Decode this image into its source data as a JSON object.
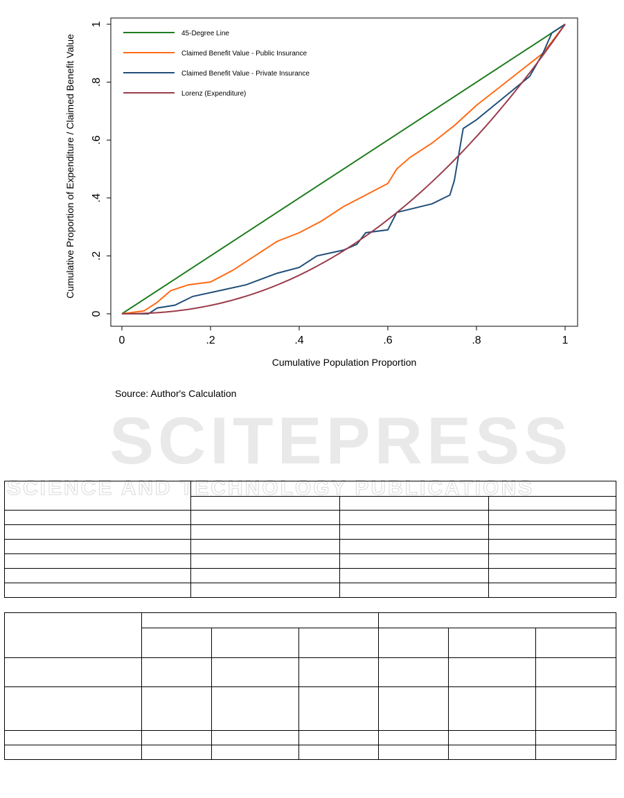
{
  "chart_data": {
    "type": "line",
    "xlabel": "Cumulative Population Proportion",
    "ylabel": "Cumulative Proportion of Expenditure / Claimed Benefit Value",
    "xlim": [
      0,
      1
    ],
    "ylim": [
      0,
      1
    ],
    "x_ticks": [
      "0",
      ".2",
      ".4",
      ".6",
      ".8",
      "1"
    ],
    "y_ticks": [
      "0",
      ".2",
      ".4",
      ".6",
      ".8",
      "1"
    ],
    "grid": false,
    "legend_position": "top-left",
    "series": [
      {
        "name": "45-Degree Line",
        "color": "#1e7b1e",
        "points": [
          [
            0,
            0
          ],
          [
            1,
            1
          ]
        ]
      },
      {
        "name": "Claimed Benefit Value - Public Insurance",
        "color": "#ff6a13",
        "points": [
          [
            0,
            0
          ],
          [
            0.05,
            0.01
          ],
          [
            0.08,
            0.04
          ],
          [
            0.11,
            0.08
          ],
          [
            0.15,
            0.1
          ],
          [
            0.2,
            0.11
          ],
          [
            0.25,
            0.15
          ],
          [
            0.3,
            0.2
          ],
          [
            0.35,
            0.25
          ],
          [
            0.4,
            0.28
          ],
          [
            0.45,
            0.32
          ],
          [
            0.5,
            0.37
          ],
          [
            0.55,
            0.41
          ],
          [
            0.6,
            0.45
          ],
          [
            0.62,
            0.5
          ],
          [
            0.65,
            0.54
          ],
          [
            0.7,
            0.59
          ],
          [
            0.75,
            0.65
          ],
          [
            0.8,
            0.72
          ],
          [
            0.85,
            0.78
          ],
          [
            0.9,
            0.84
          ],
          [
            0.95,
            0.9
          ],
          [
            1.0,
            1.0
          ]
        ]
      },
      {
        "name": "Claimed Benefit Value - Private Insurance",
        "color": "#1f4e79",
        "points": [
          [
            0,
            0
          ],
          [
            0.06,
            0.0
          ],
          [
            0.08,
            0.02
          ],
          [
            0.12,
            0.03
          ],
          [
            0.16,
            0.06
          ],
          [
            0.22,
            0.08
          ],
          [
            0.28,
            0.1
          ],
          [
            0.35,
            0.14
          ],
          [
            0.4,
            0.16
          ],
          [
            0.44,
            0.2
          ],
          [
            0.5,
            0.22
          ],
          [
            0.53,
            0.24
          ],
          [
            0.55,
            0.28
          ],
          [
            0.6,
            0.29
          ],
          [
            0.62,
            0.35
          ],
          [
            0.7,
            0.38
          ],
          [
            0.74,
            0.41
          ],
          [
            0.75,
            0.46
          ],
          [
            0.76,
            0.55
          ],
          [
            0.77,
            0.64
          ],
          [
            0.8,
            0.67
          ],
          [
            0.84,
            0.72
          ],
          [
            0.88,
            0.77
          ],
          [
            0.92,
            0.82
          ],
          [
            0.95,
            0.9
          ],
          [
            0.97,
            0.97
          ],
          [
            0.99,
            0.99
          ],
          [
            1.0,
            1.0
          ]
        ]
      },
      {
        "name": "Lorenz (Expenditure)",
        "color": "#9a3b4a",
        "curve_exponent": 2.2
      }
    ]
  },
  "source_note": "Source: Author's Calculation"
}
